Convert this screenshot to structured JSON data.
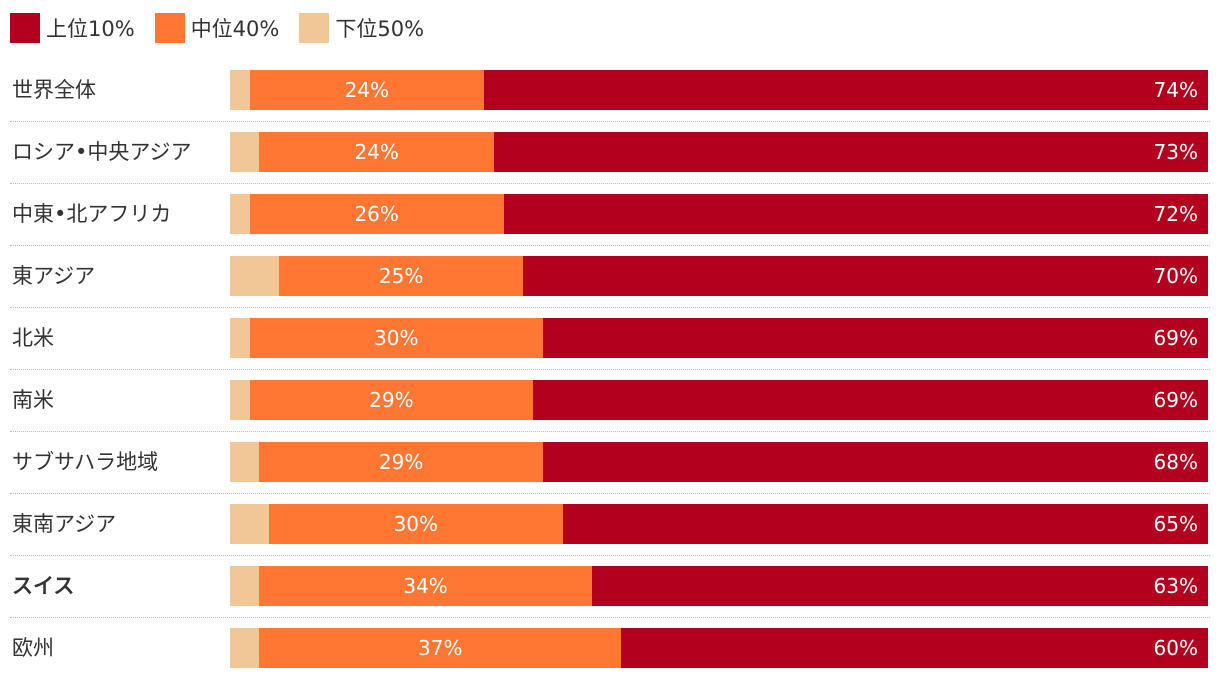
{
  "chart_data": {
    "type": "bar",
    "orientation": "horizontal",
    "stacked": true,
    "legend_position": "top-left",
    "categories": [
      "世界全体",
      "ロシア•中央アジア",
      "中東•北アフリカ",
      "東アジア",
      "北米",
      "南米",
      "サブサハラ地域",
      "東南アジア",
      "スイス",
      "欧州"
    ],
    "highlight_category": "スイス",
    "series": [
      {
        "name": "下位50%",
        "color": "#F0C795",
        "values": [
          2,
          3,
          2,
          5,
          2,
          2,
          3,
          4,
          3,
          3
        ],
        "show_labels": false
      },
      {
        "name": "中位40%",
        "color": "#FF7733",
        "values": [
          24,
          24,
          26,
          25,
          30,
          29,
          29,
          30,
          34,
          37
        ],
        "show_labels": true
      },
      {
        "name": "上位10%",
        "color": "#B2001E",
        "values": [
          74,
          73,
          72,
          70,
          69,
          69,
          68,
          65,
          63,
          60
        ],
        "show_labels": true
      }
    ],
    "legend": [
      "上位10%",
      "中位40%",
      "下位50%"
    ],
    "value_suffix": "%",
    "xlim": [
      0,
      100
    ]
  }
}
